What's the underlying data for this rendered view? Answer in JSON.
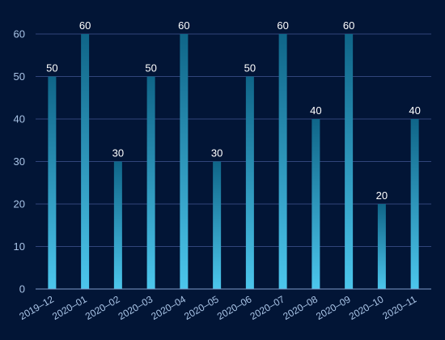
{
  "colors": {
    "background": "#021536",
    "grid": "#31457a",
    "axis": "#7f9bc9",
    "tick_text": "#a9c4e6",
    "label_text": "#ffffff",
    "bar_top": "#0f6588",
    "bar_bottom": "#4cc6ec"
  },
  "chart_data": {
    "type": "bar",
    "categories": [
      "2019-12",
      "2020-01",
      "2020-02",
      "2020-03",
      "2020-04",
      "2020-05",
      "2020-06",
      "2020-07",
      "2020-08",
      "2020-09",
      "2020-10",
      "2020-11"
    ],
    "category_labels": [
      "2019–12",
      "2020–01",
      "2020–02",
      "2020–03",
      "2020–04",
      "2020–05",
      "2020–06",
      "2020–07",
      "2020–08",
      "2020–09",
      "2020–10",
      "2020–11"
    ],
    "values": [
      50,
      60,
      30,
      50,
      60,
      30,
      50,
      60,
      40,
      60,
      20,
      40
    ],
    "data_labels": [
      "50",
      "60",
      "30",
      "50",
      "60",
      "30",
      "50",
      "60",
      "40",
      "60",
      "20",
      "40"
    ],
    "y_ticks": [
      0,
      10,
      20,
      30,
      40,
      50,
      60
    ],
    "y_tick_labels": [
      "0",
      "10",
      "20",
      "30",
      "40",
      "50",
      "60"
    ],
    "ylim": [
      0,
      60
    ],
    "grid": true,
    "legend": "none",
    "title": "",
    "xlabel": "",
    "ylabel": ""
  }
}
